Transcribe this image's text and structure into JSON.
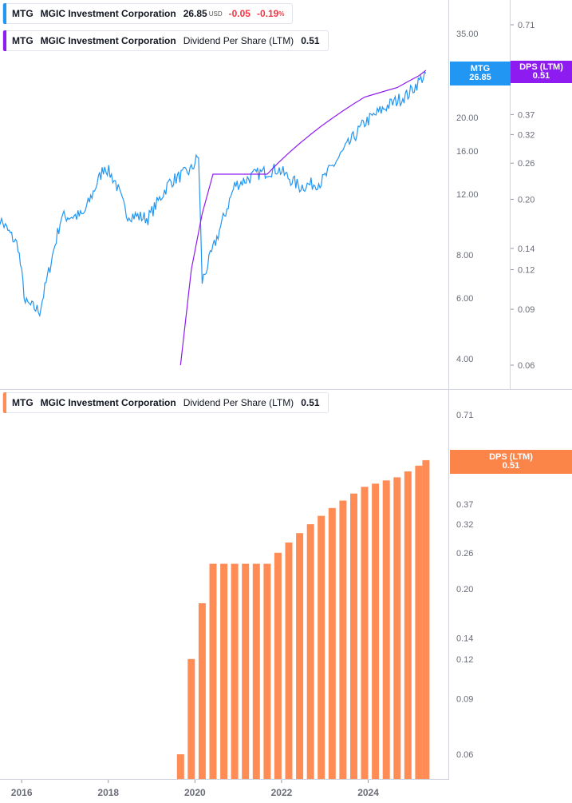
{
  "legend_price": {
    "ticker": "MTG",
    "company": "MGIC Investment Corporation",
    "price": "26.85",
    "currency": "USD",
    "change": "-0.05",
    "change_pct": "-0.19",
    "pct_sign": "%"
  },
  "legend_dps_top": {
    "ticker": "MTG",
    "company": "MGIC Investment Corporation",
    "metric": "Dividend Per Share (LTM)",
    "value": "0.51"
  },
  "legend_dps_bottom": {
    "ticker": "MTG",
    "company": "MGIC Investment Corporation",
    "metric": "Dividend Per Share (LTM)",
    "value": "0.51"
  },
  "tags": {
    "price_ticker": "MTG",
    "price_value": "26.85",
    "dps_label": "DPS (LTM)",
    "dps_value": "0.51",
    "dps_label_bottom": "DPS (LTM)",
    "dps_value_bottom": "0.51"
  },
  "colors": {
    "price_line": "#2196f3",
    "dps_line": "#8e1cf0",
    "dps_bars": "#ff8c55",
    "dps_tag_top": "#8e1cf0",
    "dps_tag_bottom": "#fb8449"
  },
  "chart_data": [
    {
      "type": "line",
      "scale": "log",
      "series": [
        {
          "name": "MTG",
          "x": [
            "2015-06",
            "2015-12",
            "2016-02",
            "2016-06",
            "2016-12",
            "2017-06",
            "2017-12",
            "2018-03",
            "2018-06",
            "2018-12",
            "2019-06",
            "2019-12",
            "2020-02",
            "2020-03",
            "2020-06",
            "2020-12",
            "2021-06",
            "2021-12",
            "2022-06",
            "2022-12",
            "2023-06",
            "2023-12",
            "2024-06",
            "2024-12",
            "2025-05"
          ],
          "y": [
            10.5,
            8.5,
            5.8,
            5.5,
            10.3,
            10.4,
            14.5,
            13.0,
            10.5,
            10.2,
            13.0,
            14.1,
            15.5,
            6.7,
            8.3,
            12.7,
            13.7,
            14.2,
            12.6,
            13.0,
            15.9,
            19.3,
            21.5,
            23.3,
            26.85
          ]
        },
        {
          "name": "Dividend Per Share (LTM)",
          "x": [
            "2019-09",
            "2019-12",
            "2020-03",
            "2020-06",
            "2020-09",
            "2020-12",
            "2021-03",
            "2021-06",
            "2021-09",
            "2021-12",
            "2022-03",
            "2022-06",
            "2022-09",
            "2022-12",
            "2023-03",
            "2023-06",
            "2023-09",
            "2023-12",
            "2024-03",
            "2024-06",
            "2024-09",
            "2024-12",
            "2025-03",
            "2025-05"
          ],
          "y": [
            0.06,
            0.12,
            0.18,
            0.24,
            0.24,
            0.24,
            0.24,
            0.24,
            0.24,
            0.26,
            0.28,
            0.3,
            0.32,
            0.34,
            0.36,
            0.38,
            0.4,
            0.42,
            0.43,
            0.44,
            0.45,
            0.47,
            0.49,
            0.51
          ]
        }
      ],
      "y_ticks": [
        "35.00",
        "20.00",
        "16.00",
        "12.00",
        "8.00",
        "6.00",
        "4.00"
      ],
      "y_ticks_right": [
        "0.71",
        "0.37",
        "0.32",
        "0.26",
        "0.20",
        "0.14",
        "0.12",
        "0.09",
        "0.06"
      ]
    },
    {
      "type": "bar",
      "scale": "log",
      "series": [
        {
          "name": "Dividend Per Share (LTM)",
          "x": [
            "2019-09",
            "2019-12",
            "2020-03",
            "2020-06",
            "2020-09",
            "2020-12",
            "2021-03",
            "2021-06",
            "2021-09",
            "2021-12",
            "2022-03",
            "2022-06",
            "2022-09",
            "2022-12",
            "2023-03",
            "2023-06",
            "2023-09",
            "2023-12",
            "2024-03",
            "2024-06",
            "2024-09",
            "2024-12",
            "2025-03",
            "2025-05"
          ],
          "values": [
            0.06,
            0.12,
            0.18,
            0.24,
            0.24,
            0.24,
            0.24,
            0.24,
            0.24,
            0.26,
            0.28,
            0.3,
            0.32,
            0.34,
            0.36,
            0.38,
            0.4,
            0.42,
            0.43,
            0.44,
            0.45,
            0.47,
            0.49,
            0.51
          ]
        }
      ],
      "y_ticks": [
        "0.71",
        "0.37",
        "0.32",
        "0.26",
        "0.20",
        "0.14",
        "0.12",
        "0.09",
        "0.06"
      ],
      "x_ticks": [
        "2016",
        "2018",
        "2020",
        "2022",
        "2024"
      ]
    }
  ]
}
